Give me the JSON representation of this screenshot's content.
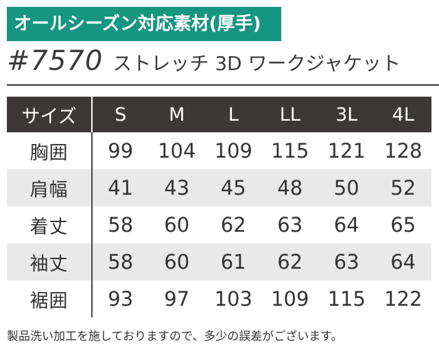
{
  "badge": "オールシーズン対応素材(厚手)",
  "model_number": "#7570",
  "product_name": "ストレッチ 3D ワークジャケット",
  "table": {
    "header_label": "サイズ",
    "sizes": [
      "S",
      "M",
      "L",
      "LL",
      "3L",
      "4L"
    ],
    "rows": [
      {
        "label": "胸囲",
        "values": [
          "99",
          "104",
          "109",
          "115",
          "121",
          "128"
        ]
      },
      {
        "label": "肩幅",
        "values": [
          "41",
          "43",
          "45",
          "48",
          "50",
          "52"
        ]
      },
      {
        "label": "着丈",
        "values": [
          "58",
          "60",
          "62",
          "63",
          "64",
          "65"
        ]
      },
      {
        "label": "袖丈",
        "values": [
          "58",
          "60",
          "61",
          "62",
          "63",
          "64"
        ]
      },
      {
        "label": "裾囲",
        "values": [
          "93",
          "97",
          "103",
          "109",
          "115",
          "122"
        ]
      }
    ]
  },
  "note": "製品洗い加工を施しておりますので、多少の誤差がございます。",
  "colors": {
    "badge_bg": "#169580",
    "header_bg": "#3d3838",
    "shaded_row_bg": "#e9e9e9"
  }
}
